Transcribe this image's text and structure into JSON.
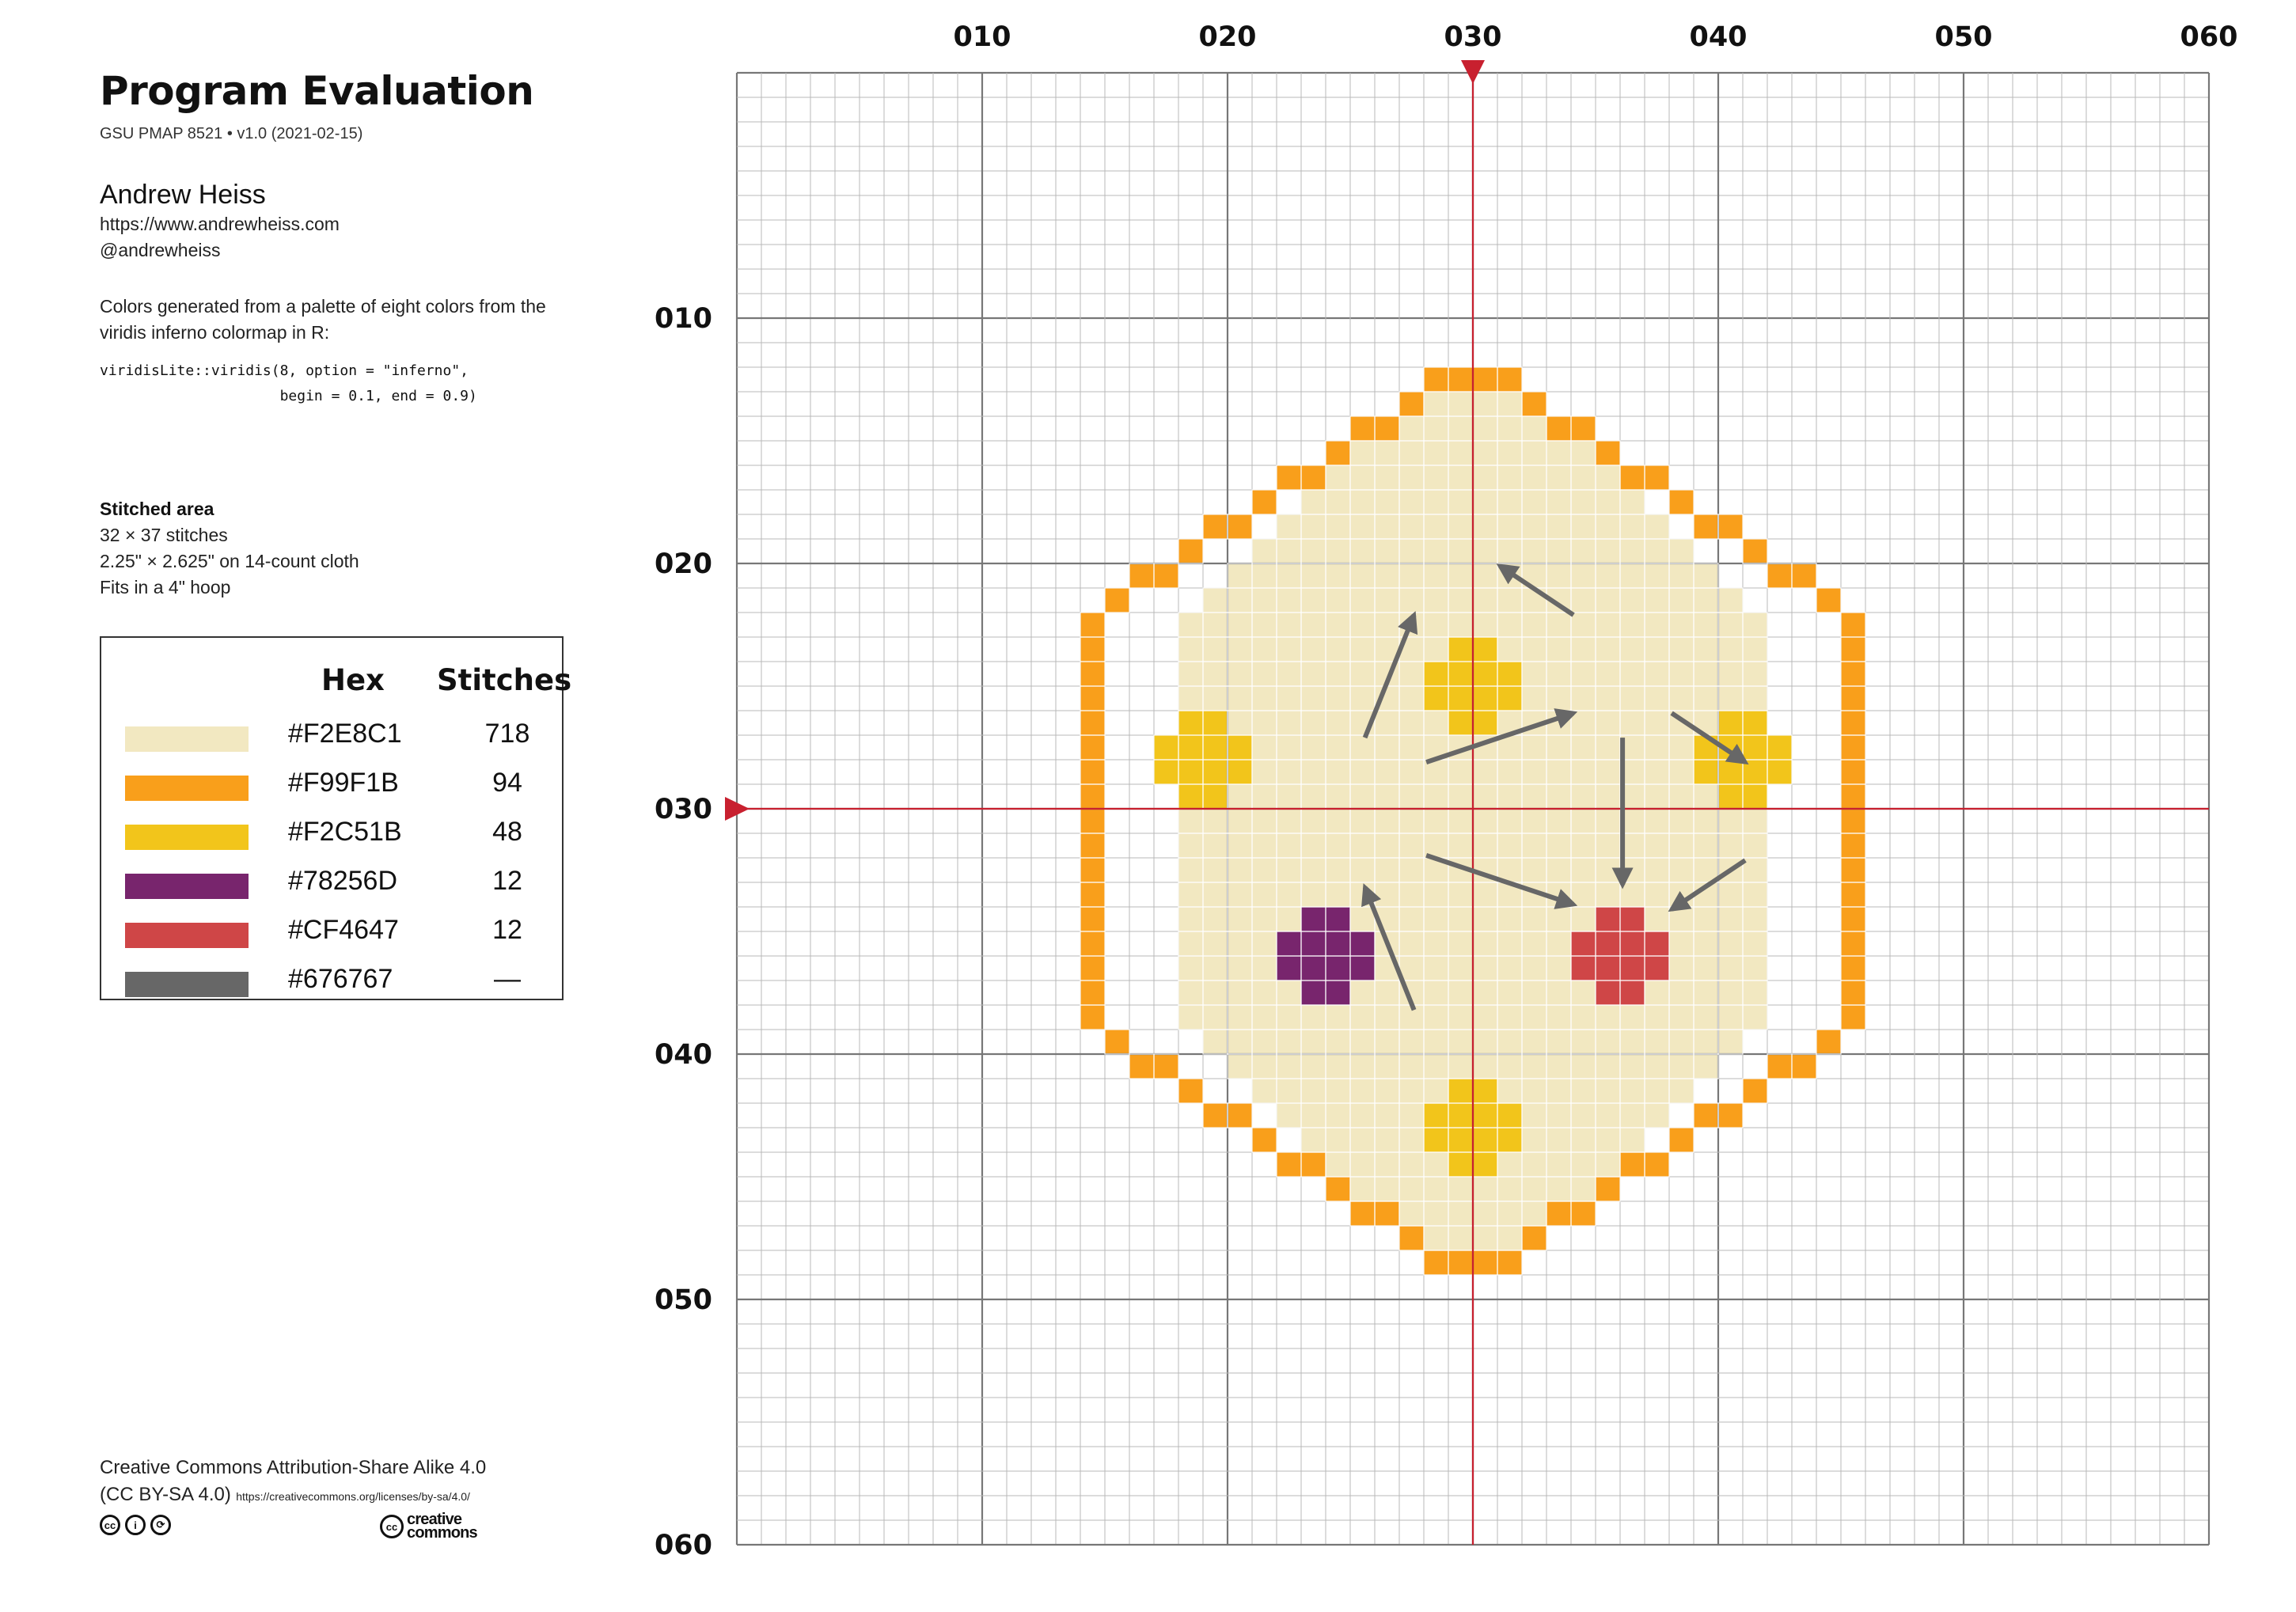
{
  "title": "Program Evaluation",
  "subtitle": "GSU PMAP 8521 • v1.0 (2021-02-15)",
  "author": {
    "name": "Andrew Heiss",
    "website": "https://www.andrewheiss.com",
    "handle": "@andrewheiss"
  },
  "note": "Colors generated from a palette of eight colors from the viridis inferno colormap in R:",
  "code": "viridisLite::viridis(8, option = \"inferno\",\n                     begin = 0.1, end = 0.9)",
  "stitched_area": {
    "heading": "Stitched area",
    "lines": [
      "32 × 37 stitches",
      "2.25\" × 2.625\" on 14-count cloth",
      "Fits in a 4\" hoop"
    ]
  },
  "legend": {
    "header_hex": "Hex",
    "header_stitches": "Stitches",
    "rows": [
      {
        "hex": "#F2E8C1",
        "color": "#F2E8C1",
        "stitches": "718"
      },
      {
        "hex": "#F99F1B",
        "color": "#F99F1B",
        "stitches": "94"
      },
      {
        "hex": "#F2C51B",
        "color": "#F2C51B",
        "stitches": "48"
      },
      {
        "hex": "#78256D",
        "color": "#78256D",
        "stitches": "12"
      },
      {
        "hex": "#CF4647",
        "color": "#CF4647",
        "stitches": "12"
      },
      {
        "hex": "#676767",
        "color": "#676767",
        "stitches": "—"
      }
    ]
  },
  "license": {
    "text": "Creative Commons Attribution-Share Alike 4.0",
    "abbr": "(CC BY-SA 4.0)",
    "url": "https://creativecommons.org/licenses/by-sa/4.0/",
    "icons": [
      "cc-icon",
      "by-icon",
      "sa-icon"
    ],
    "icon_glyphs": [
      "cc",
      "i",
      "⟳"
    ],
    "logo_text": [
      "creative",
      "commons"
    ]
  },
  "chart_data": {
    "type": "heatmap",
    "grid_size": [
      60,
      60
    ],
    "grid": true,
    "x_ticks": [
      "010",
      "020",
      "030",
      "040",
      "050",
      "060"
    ],
    "y_ticks": [
      "010",
      "020",
      "030",
      "040",
      "050",
      "060"
    ],
    "center_marks": {
      "x": 30,
      "y": 30,
      "color": "#C8202F"
    },
    "colors": {
      "fill": "#F2E8C1",
      "border": "#F99F1B",
      "yellow": "#F2C51B",
      "purple": "#78256D",
      "red": "#CF4647",
      "arrow": "#676767"
    },
    "shape": {
      "row_spans": [
        [
          12,
          28,
          31
        ],
        [
          13,
          27,
          32
        ],
        [
          14,
          26,
          33
        ],
        [
          15,
          25,
          34
        ],
        [
          16,
          24,
          35
        ],
        [
          17,
          23,
          36
        ],
        [
          18,
          22,
          37
        ],
        [
          19,
          21,
          38
        ],
        [
          20,
          20,
          39
        ],
        [
          21,
          19,
          40
        ],
        [
          22,
          18,
          41
        ],
        [
          23,
          18,
          41
        ],
        [
          24,
          18,
          41
        ],
        [
          25,
          18,
          41
        ],
        [
          26,
          18,
          41
        ],
        [
          27,
          18,
          41
        ],
        [
          28,
          18,
          41
        ],
        [
          29,
          18,
          41
        ],
        [
          30,
          18,
          41
        ],
        [
          31,
          18,
          41
        ],
        [
          32,
          18,
          41
        ],
        [
          33,
          18,
          41
        ],
        [
          34,
          18,
          41
        ],
        [
          35,
          18,
          41
        ],
        [
          36,
          18,
          41
        ],
        [
          37,
          18,
          41
        ],
        [
          38,
          18,
          41
        ],
        [
          39,
          19,
          40
        ],
        [
          40,
          20,
          39
        ],
        [
          41,
          21,
          38
        ],
        [
          42,
          22,
          37
        ],
        [
          43,
          23,
          36
        ],
        [
          44,
          24,
          35
        ],
        [
          45,
          25,
          34
        ],
        [
          46,
          26,
          33
        ],
        [
          47,
          27,
          32
        ],
        [
          48,
          28,
          31
        ]
      ],
      "border_cells": [
        [
          12,
          28
        ],
        [
          12,
          29
        ],
        [
          12,
          30
        ],
        [
          12,
          31
        ],
        [
          13,
          27
        ],
        [
          13,
          32
        ],
        [
          14,
          25
        ],
        [
          14,
          26
        ],
        [
          14,
          33
        ],
        [
          14,
          34
        ],
        [
          15,
          24
        ],
        [
          15,
          35
        ],
        [
          16,
          22
        ],
        [
          16,
          23
        ],
        [
          16,
          36
        ],
        [
          16,
          37
        ],
        [
          17,
          21
        ],
        [
          17,
          38
        ],
        [
          18,
          19
        ],
        [
          18,
          20
        ],
        [
          18,
          39
        ],
        [
          18,
          40
        ],
        [
          19,
          18
        ],
        [
          19,
          41
        ],
        [
          20,
          16
        ],
        [
          20,
          17
        ],
        [
          20,
          42
        ],
        [
          20,
          43
        ],
        [
          21,
          15
        ],
        [
          21,
          44
        ],
        [
          22,
          14
        ],
        [
          22,
          45
        ],
        [
          23,
          14
        ],
        [
          23,
          45
        ],
        [
          24,
          14
        ],
        [
          24,
          45
        ],
        [
          25,
          14
        ],
        [
          25,
          45
        ],
        [
          26,
          14
        ],
        [
          26,
          45
        ],
        [
          27,
          14
        ],
        [
          27,
          45
        ],
        [
          28,
          14
        ],
        [
          28,
          45
        ],
        [
          29,
          14
        ],
        [
          29,
          45
        ],
        [
          30,
          14
        ],
        [
          30,
          45
        ],
        [
          31,
          14
        ],
        [
          31,
          45
        ],
        [
          32,
          14
        ],
        [
          32,
          45
        ],
        [
          33,
          14
        ],
        [
          33,
          45
        ],
        [
          34,
          14
        ],
        [
          34,
          45
        ],
        [
          35,
          14
        ],
        [
          35,
          45
        ],
        [
          36,
          14
        ],
        [
          36,
          45
        ],
        [
          37,
          14
        ],
        [
          37,
          45
        ],
        [
          38,
          14
        ],
        [
          38,
          45
        ],
        [
          39,
          15
        ],
        [
          39,
          44
        ],
        [
          40,
          16
        ],
        [
          40,
          17
        ],
        [
          40,
          42
        ],
        [
          40,
          43
        ],
        [
          41,
          18
        ],
        [
          41,
          41
        ],
        [
          42,
          19
        ],
        [
          42,
          20
        ],
        [
          42,
          39
        ],
        [
          42,
          40
        ],
        [
          43,
          21
        ],
        [
          43,
          38
        ],
        [
          44,
          22
        ],
        [
          44,
          23
        ],
        [
          44,
          36
        ],
        [
          44,
          37
        ],
        [
          45,
          24
        ],
        [
          45,
          35
        ],
        [
          46,
          25
        ],
        [
          46,
          26
        ],
        [
          46,
          33
        ],
        [
          46,
          34
        ],
        [
          47,
          27
        ],
        [
          47,
          32
        ],
        [
          48,
          28
        ],
        [
          48,
          29
        ],
        [
          48,
          30
        ],
        [
          48,
          31
        ]
      ]
    },
    "nodes": [
      {
        "name": "top",
        "color": "yellow",
        "center": [
          24,
          30
        ]
      },
      {
        "name": "left",
        "color": "yellow",
        "center": [
          27,
          19
        ]
      },
      {
        "name": "right",
        "color": "yellow",
        "center": [
          27,
          41
        ]
      },
      {
        "name": "bottom",
        "color": "yellow",
        "center": [
          42,
          30
        ]
      },
      {
        "name": "purple",
        "color": "purple",
        "center": [
          35,
          24
        ]
      },
      {
        "name": "red",
        "color": "red",
        "center": [
          35,
          36
        ]
      }
    ],
    "node_pattern": [
      [
        -1,
        -1
      ],
      [
        -1,
        0
      ],
      [
        0,
        -2
      ],
      [
        0,
        -1
      ],
      [
        0,
        0
      ],
      [
        0,
        1
      ],
      [
        1,
        -2
      ],
      [
        1,
        -1
      ],
      [
        1,
        0
      ],
      [
        1,
        1
      ],
      [
        2,
        -1
      ],
      [
        2,
        0
      ]
    ],
    "arrows": [
      {
        "from": [
          27.1,
          25.6
        ],
        "to": [
          22.1,
          27.6
        ]
      },
      {
        "from": [
          38.2,
          27.6
        ],
        "to": [
          33.2,
          25.6
        ]
      },
      {
        "from": [
          28.1,
          28.1
        ],
        "to": [
          26.1,
          34.1
        ]
      },
      {
        "from": [
          31.9,
          28.1
        ],
        "to": [
          33.9,
          34.1
        ]
      },
      {
        "from": [
          27.1,
          36.1
        ],
        "to": [
          33.1,
          36.1
        ]
      },
      {
        "from": [
          22.1,
          34.1
        ],
        "to": [
          20.1,
          31.1
        ]
      },
      {
        "from": [
          26.1,
          38.1
        ],
        "to": [
          28.1,
          41.1
        ]
      },
      {
        "from": [
          32.1,
          41.1
        ],
        "to": [
          34.1,
          38.1
        ]
      }
    ]
  }
}
